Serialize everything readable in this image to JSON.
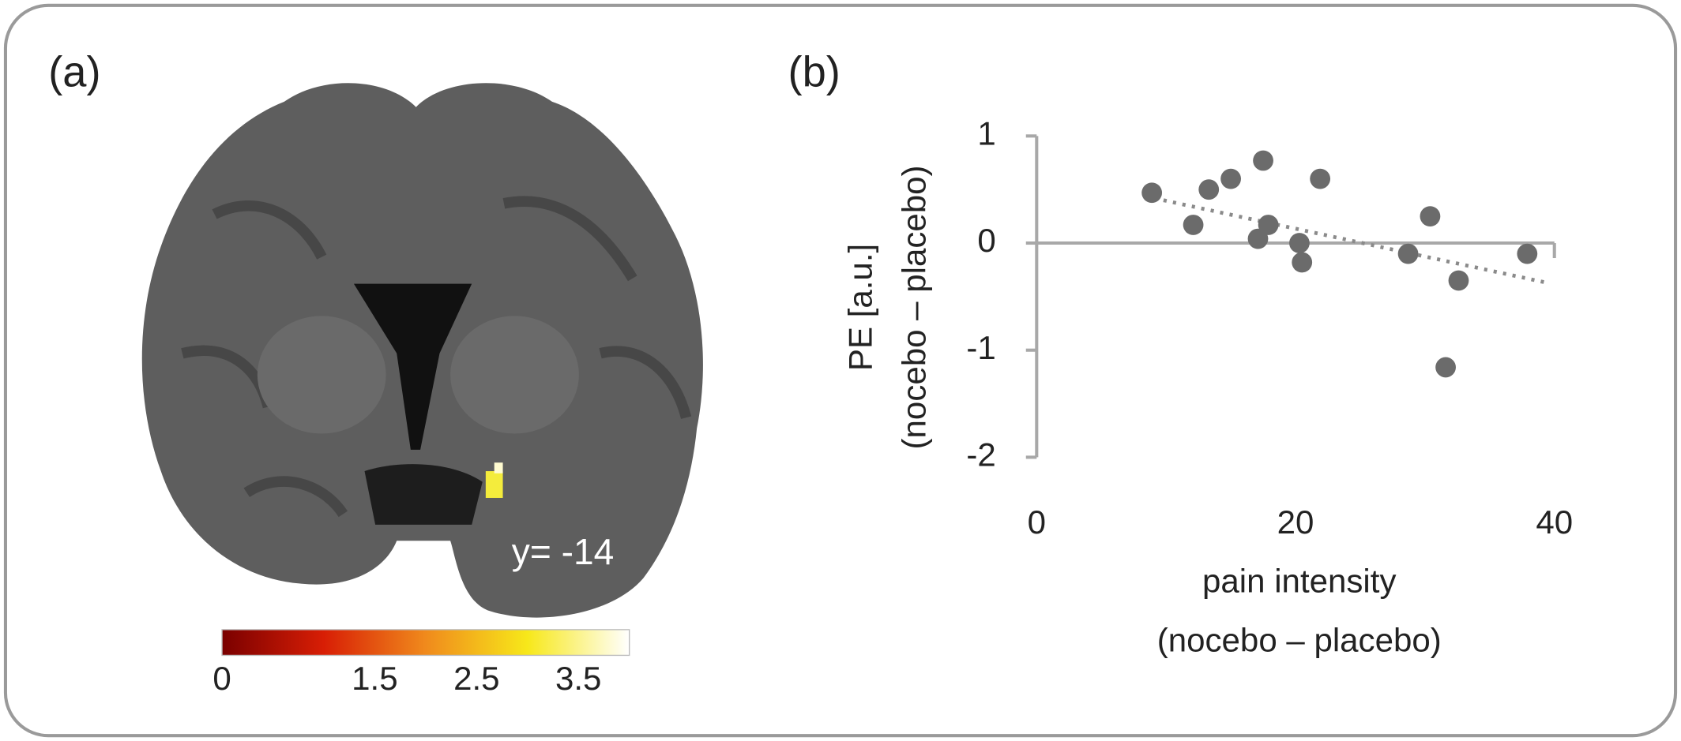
{
  "chart_data": [
    {
      "type": "colorbar",
      "panel_label": "(a)",
      "annotation": "y= -14",
      "xlim": [
        0,
        4
      ],
      "xticks": [
        0,
        1.5,
        2.5,
        3.5
      ],
      "colors": [
        "#7a0000",
        "#d81e05",
        "#f08a1c",
        "#f7e81a",
        "#ffffff"
      ]
    },
    {
      "type": "scatter",
      "panel_label": "(b)",
      "xlabel": [
        "pain intensity",
        "(nocebo – placebo)"
      ],
      "ylabel": [
        "PE [a.u.]",
        "(nocebo – placebo)"
      ],
      "x": [
        8.9,
        12.1,
        13.3,
        15.0,
        17.5,
        17.1,
        17.9,
        20.3,
        20.5,
        21.9,
        28.7,
        30.4,
        32.6,
        31.6,
        37.9
      ],
      "values": [
        0.47,
        0.17,
        0.5,
        0.6,
        0.77,
        0.04,
        0.17,
        0.0,
        -0.18,
        0.6,
        -0.1,
        0.25,
        -0.35,
        -1.16,
        -0.1
      ],
      "color": "#6b6b6b",
      "trendline": {
        "x": [
          9.8,
          39.4
        ],
        "values": [
          0.4,
          -0.37
        ],
        "color": "#8a8a8a"
      },
      "xlim": [
        0,
        40
      ],
      "xticks": [
        0,
        20,
        40
      ],
      "ylim": [
        -2,
        1
      ],
      "yticks": [
        1,
        0,
        -1,
        -2
      ]
    }
  ]
}
